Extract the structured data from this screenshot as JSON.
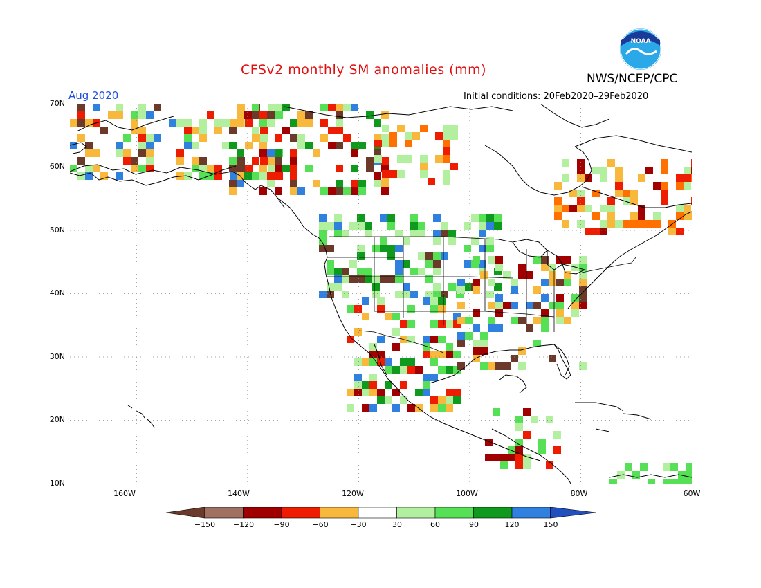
{
  "header": {
    "title": "CFSv2 monthly SM anomalies (mm)",
    "agency": "NWS/NCEP/CPC",
    "month": "Aug 2020",
    "initial_conditions": "Initial conditions: 20Feb2020–29Feb2020",
    "logo_text": "NOAA"
  },
  "map": {
    "lon_range": [
      -172,
      -60
    ],
    "lat_range": [
      10,
      70
    ],
    "lat_labels": [
      "70N",
      "60N",
      "50N",
      "40N",
      "30N",
      "20N",
      "10N"
    ],
    "lon_labels": [
      "160W",
      "140W",
      "120W",
      "100W",
      "80W",
      "60W"
    ],
    "gridlines": "dotted"
  },
  "colorbar": {
    "labels": [
      "−150",
      "−120",
      "−90",
      "−60",
      "−30",
      "30",
      "60",
      "90",
      "120",
      "150"
    ],
    "colors": [
      "#6b3a2a",
      "#a07060",
      "#a00000",
      "#ee1c00",
      "#ff7000",
      "#f8b83c",
      "#ffffff",
      "#b2f0a0",
      "#55e055",
      "#0f9a1e",
      "#3080e0",
      "#2050c0"
    ]
  },
  "anomaly_colors": {
    "dry_extreme": "#6b3a2a",
    "dry_150": "#a07060",
    "dry_120": "#a00000",
    "dry_90": "#ee1c00",
    "dry_60": "#ff7000",
    "dry_30": "#f8b83c",
    "wet_30": "#b2f0a0",
    "wet_60": "#55e055",
    "wet_90": "#0f9a1e",
    "wet_120": "#3080e0",
    "wet_150": "#2050c0"
  }
}
